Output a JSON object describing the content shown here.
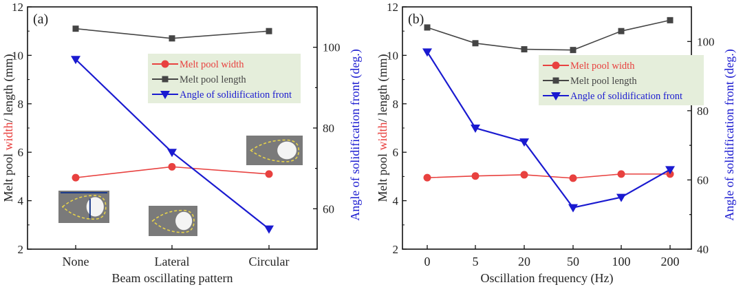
{
  "colors": {
    "width": "#e8413f",
    "length": "#454545",
    "angle": "#1a1ad0",
    "legend_bg": "#e5eedb",
    "axis": "#111111"
  },
  "chart_data": [
    {
      "type": "line",
      "panel_label": "(a)",
      "xlabel": "Beam oscillating pattern",
      "ylabel_parts": [
        "Melt pool ",
        "width",
        "/ length (mm)"
      ],
      "y2label": "Angle of solidification front (deg.)",
      "categories": [
        "None",
        "Lateral",
        "Circular"
      ],
      "ylim": [
        2,
        12
      ],
      "yticks": [
        2,
        4,
        6,
        8,
        10,
        12
      ],
      "y2lim": [
        50,
        110
      ],
      "y2ticks": [
        60,
        80,
        100
      ],
      "legend": {
        "position": "top-right",
        "entries": [
          "Melt pool width",
          "Melt pool length",
          "Angle of solidification front"
        ]
      },
      "series": [
        {
          "name": "Melt pool width",
          "axis": "left",
          "marker": "circle",
          "values": [
            4.95,
            5.4,
            5.1
          ]
        },
        {
          "name": "Melt pool length",
          "axis": "left",
          "marker": "square",
          "values": [
            11.1,
            10.7,
            11.0
          ]
        },
        {
          "name": "Angle of solidification front",
          "axis": "right",
          "marker": "triangle-down",
          "values": [
            97,
            74,
            55
          ]
        }
      ],
      "insets": [
        "melt-pool-none",
        "melt-pool-lateral",
        "melt-pool-circular"
      ]
    },
    {
      "type": "line",
      "panel_label": "(b)",
      "xlabel": "Oscillation frequency (Hz)",
      "ylabel_parts": [
        "Melt pool ",
        "width",
        "/ length (mm)"
      ],
      "y2label": "Angle of solidification front (deg.)",
      "categories": [
        "0",
        "5",
        "20",
        "50",
        "100",
        "200"
      ],
      "ylim": [
        2,
        12
      ],
      "yticks": [
        2,
        4,
        6,
        8,
        10,
        12
      ],
      "y2lim": [
        40,
        110
      ],
      "y2ticks": [
        40,
        60,
        80,
        100
      ],
      "legend": {
        "position": "top-right",
        "entries": [
          "Melt pool width",
          "Melt pool length",
          "Angle of solidification front"
        ]
      },
      "series": [
        {
          "name": "Melt pool width",
          "axis": "left",
          "marker": "circle",
          "values": [
            4.95,
            5.02,
            5.07,
            4.93,
            5.1,
            5.1
          ]
        },
        {
          "name": "Melt pool length",
          "axis": "left",
          "marker": "square",
          "values": [
            11.15,
            10.5,
            10.25,
            10.22,
            11.0,
            11.45
          ]
        },
        {
          "name": "Angle of solidification front",
          "axis": "right",
          "marker": "triangle-down",
          "values": [
            97,
            75,
            71,
            52,
            55,
            63
          ]
        }
      ],
      "insets": []
    }
  ]
}
